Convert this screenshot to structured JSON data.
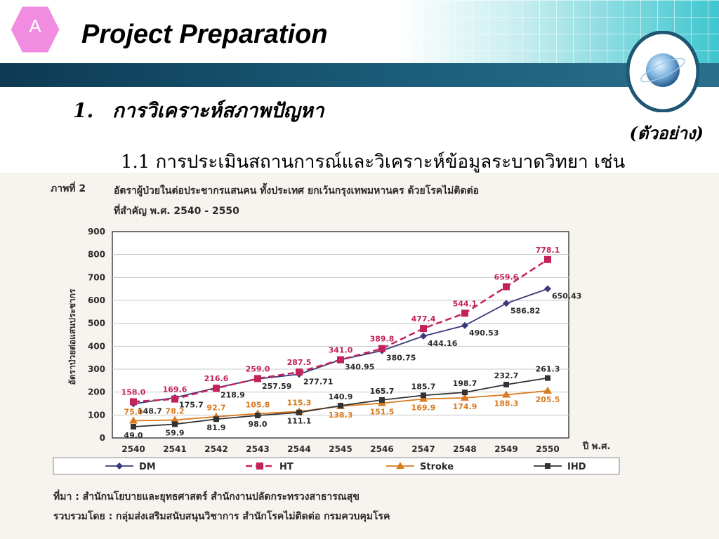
{
  "slide": {
    "badge": "A",
    "title": "Project Preparation",
    "example_tag": "(ตัวอย่าง)",
    "heading_number": "1.",
    "heading": "การวิเคราะห์สภาพปัญหา",
    "subheading": "1.1  การประเมินสถานการณ์และวิเคราะห์ข้อมูลระบาดวิทยา เช่น"
  },
  "figure": {
    "label": "ภาพที่ 2",
    "caption_line1": "อัตราผู้ป่วยในต่อประชากรแสนคน ทั้งประเทศ ยกเว้นกรุงเทพมหานคร ด้วยโรคไม่ติดต่อ",
    "caption_line2": "ที่สำคัญ พ.ศ. 2540 - 2550",
    "source_line1": "ที่มา : สำนักนโยบายและยุทธศาสตร์ สำนักงานปลัดกระทรวงสาธารณสุข",
    "source_line2": "รวบรวมโดย : กลุ่มส่งเสริมสนับสนุนวิชาการ สำนักโรคไม่ติดต่อ กรมควบคุมโรค"
  },
  "colors": {
    "DM": "#3a3a7a",
    "HT": "#c4225a",
    "Stroke": "#d97a1e",
    "IHD": "#333333",
    "badge": "#f28ce0"
  },
  "chart_data": {
    "type": "line",
    "title": "",
    "xlabel": "ปี พ.ศ.",
    "ylabel": "อัตราป่วยต่อแสนประชากร",
    "x": [
      "2540",
      "2541",
      "2542",
      "2543",
      "2544",
      "2545",
      "2546",
      "2547",
      "2548",
      "2549",
      "2550"
    ],
    "ylim": [
      0,
      900
    ],
    "yticks": [
      0,
      100,
      200,
      300,
      400,
      500,
      600,
      700,
      800,
      900
    ],
    "legend_position": "bottom",
    "series": [
      {
        "name": "DM",
        "marker": "diamond",
        "dash": false,
        "values": [
          148.7,
          175.7,
          218.9,
          257.59,
          277.71,
          340.95,
          380.75,
          444.16,
          490.53,
          586.82,
          650.43
        ],
        "labels": [
          "148.7",
          "175.7",
          "218.9",
          "257.59",
          "277.71",
          "340.95",
          "380.75",
          "444.16",
          "490.53",
          "586.82",
          "650.43"
        ]
      },
      {
        "name": "HT",
        "marker": "square",
        "dash": true,
        "values": [
          158.0,
          169.6,
          216.6,
          259.0,
          287.5,
          341.0,
          389.8,
          477.4,
          544.1,
          659.6,
          778.1
        ],
        "labels": [
          "158.0",
          "169.6",
          "216.6",
          "259.0",
          "287.5",
          "341.0",
          "389.8",
          "477.4",
          "544.1",
          "659.6",
          "778.1"
        ]
      },
      {
        "name": "Stroke",
        "marker": "triangle",
        "dash": false,
        "values": [
          75.0,
          78.2,
          92.7,
          105.8,
          115.3,
          138.3,
          151.5,
          169.9,
          174.9,
          188.3,
          205.5
        ],
        "labels": [
          "75.0",
          "78.2",
          "92.7",
          "105.8",
          "115.3",
          "138.3",
          "151.5",
          "169.9",
          "174.9",
          "188.3",
          "205.5"
        ]
      },
      {
        "name": "IHD",
        "marker": "square-small",
        "dash": false,
        "values": [
          49.0,
          59.9,
          81.9,
          98.0,
          111.1,
          140.9,
          165.7,
          185.7,
          198.7,
          232.7,
          261.3
        ],
        "labels": [
          "49.0",
          "59.9",
          "81.9",
          "98.0",
          "111.1",
          "140.9",
          "165.7",
          "185.7",
          "198.7",
          "232.7",
          "261.3"
        ]
      }
    ]
  }
}
